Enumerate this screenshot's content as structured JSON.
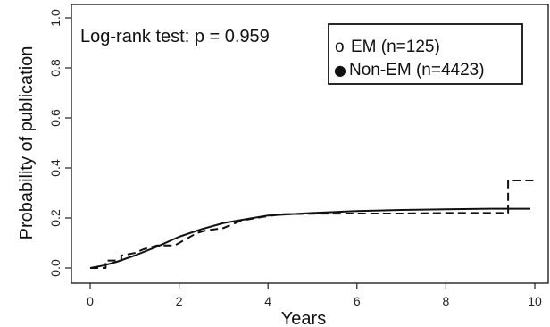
{
  "chart_data": {
    "type": "line",
    "title": "",
    "xlabel": "Years",
    "ylabel": "Probability of publication",
    "xlim": [
      0,
      10
    ],
    "ylim": [
      0,
      1
    ],
    "x_ticks": [
      "0",
      "2",
      "4",
      "6",
      "8",
      "10"
    ],
    "y_ticks": [
      "0.0",
      "0.2",
      "0.4",
      "0.6",
      "0.8",
      "1.0"
    ],
    "annotation": "Log-rank test: p = 0.959",
    "grid": false,
    "legend_position": "top-right",
    "series": [
      {
        "name": "EM (n=125)",
        "marker": "o",
        "line_style": "dashed",
        "color": "#111111",
        "x": [
          0,
          0.35,
          0.35,
          0.7,
          0.7,
          1.0,
          1.2,
          1.5,
          1.9,
          2.4,
          2.6,
          3.0,
          3.4,
          3.9,
          4.3,
          5.0,
          6.0,
          7.0,
          8.0,
          9.0,
          9.4,
          9.4,
          9.6,
          9.6,
          10.0
        ],
        "y": [
          0,
          0,
          0.03,
          0.03,
          0.05,
          0.06,
          0.075,
          0.09,
          0.09,
          0.14,
          0.15,
          0.16,
          0.19,
          0.205,
          0.215,
          0.217,
          0.218,
          0.218,
          0.22,
          0.22,
          0.22,
          0.35,
          0.35,
          0.35,
          0.35
        ]
      },
      {
        "name": "Non-EM (n=4423)",
        "marker": "●",
        "line_style": "solid",
        "color": "#111111",
        "x": [
          0,
          0.3,
          0.6,
          1.0,
          1.5,
          2.0,
          2.5,
          3.0,
          3.5,
          4.0,
          4.5,
          5.0,
          6.0,
          7.0,
          8.0,
          9.0,
          9.9
        ],
        "y": [
          0,
          0.01,
          0.025,
          0.05,
          0.085,
          0.125,
          0.155,
          0.18,
          0.195,
          0.21,
          0.215,
          0.22,
          0.228,
          0.232,
          0.235,
          0.237,
          0.237
        ]
      }
    ]
  }
}
